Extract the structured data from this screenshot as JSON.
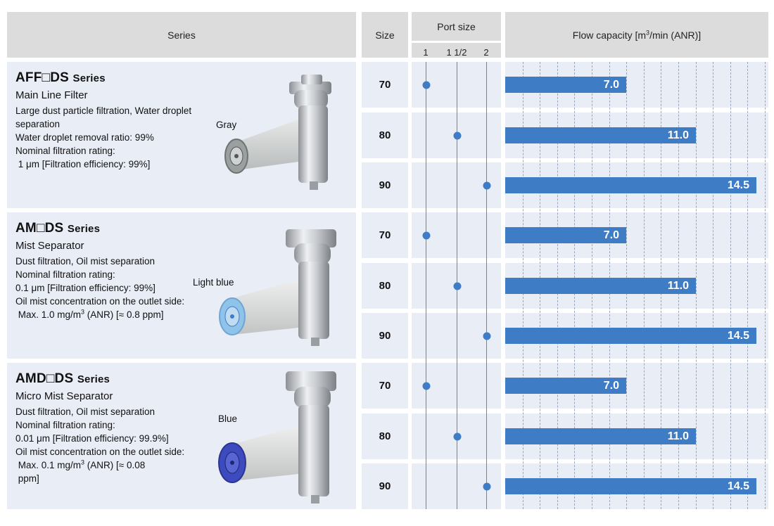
{
  "header": {
    "series": "Series",
    "size": "Size",
    "port_size": "Port size",
    "port_labels": [
      "1",
      "1 1/2",
      "2"
    ],
    "flow_capacity_pre": "Flow capacity [m",
    "flow_capacity_sup": "3",
    "flow_capacity_post": "/min (ANR)]"
  },
  "series": [
    {
      "code": "AFF□DS",
      "suffix": "Series",
      "name": "Main Line Filter",
      "desc": [
        "Large dust particle filtration, Water droplet",
        "separation",
        "Water droplet removal ratio: 99%",
        "Nominal filtration rating:",
        " 1 μm [Filtration efficiency: 99%]"
      ],
      "element_color_label": "Gray",
      "element_color": "#9aa0a0"
    },
    {
      "code": "AM□DS",
      "suffix": "Series",
      "name": "Mist Separator",
      "desc": [
        "Dust filtration, Oil mist separation",
        "Nominal filtration rating:",
        "0.1 μm [Filtration efficiency: 99%]",
        "Oil mist concentration on the outlet side:"
      ],
      "desc_last_pre": " Max. 1.0 mg/m",
      "desc_last_sup": "3",
      "desc_last_post": " (ANR) [≈ 0.8 ppm]",
      "element_color_label": "Light blue",
      "element_color": "#8fc3ea"
    },
    {
      "code": "AMD□DS",
      "suffix": "Series",
      "name": "Micro Mist Separator",
      "desc": [
        "Dust filtration, Oil mist separation",
        "Nominal filtration rating:",
        "0.01 μm [Filtration efficiency: 99.9%]",
        "Oil mist concentration on the outlet side:"
      ],
      "desc_last_pre": " Max. 0.1 mg/m",
      "desc_last_sup": "3",
      "desc_last_post": " (ANR) [≈ 0.08",
      "desc_extra": " ppm]",
      "element_color_label": "Blue",
      "element_color": "#3d4bbf"
    }
  ],
  "rows": [
    {
      "size": "70",
      "port": "1",
      "flow": 7.0,
      "flow_label": "7.0"
    },
    {
      "size": "80",
      "port": "1 1/2",
      "flow": 11.0,
      "flow_label": "11.0"
    },
    {
      "size": "90",
      "port": "2",
      "flow": 14.5,
      "flow_label": "14.5"
    },
    {
      "size": "70",
      "port": "1",
      "flow": 7.0,
      "flow_label": "7.0"
    },
    {
      "size": "80",
      "port": "1 1/2",
      "flow": 11.0,
      "flow_label": "11.0"
    },
    {
      "size": "90",
      "port": "2",
      "flow": 14.5,
      "flow_label": "14.5"
    },
    {
      "size": "70",
      "port": "1",
      "flow": 7.0,
      "flow_label": "7.0"
    },
    {
      "size": "80",
      "port": "1 1/2",
      "flow": 11.0,
      "flow_label": "11.0"
    },
    {
      "size": "90",
      "port": "2",
      "flow": 14.5,
      "flow_label": "14.5"
    }
  ],
  "chart_data": {
    "type": "bar",
    "xlabel": "Flow capacity [m3/min (ANR)]",
    "xlim": [
      0,
      15
    ],
    "grid": true,
    "categories": [
      "AFF□DS 70",
      "AFF□DS 80",
      "AFF□DS 90",
      "AM□DS 70",
      "AM□DS 80",
      "AM□DS 90",
      "AMD□DS 70",
      "AMD□DS 80",
      "AMD□DS 90"
    ],
    "values": [
      7.0,
      11.0,
      14.5,
      7.0,
      11.0,
      14.5,
      7.0,
      11.0,
      14.5
    ]
  },
  "colors": {
    "accent": "#3f7cc6",
    "cell_bg": "#e9edf6",
    "header_bg": "#dcdcdc"
  }
}
